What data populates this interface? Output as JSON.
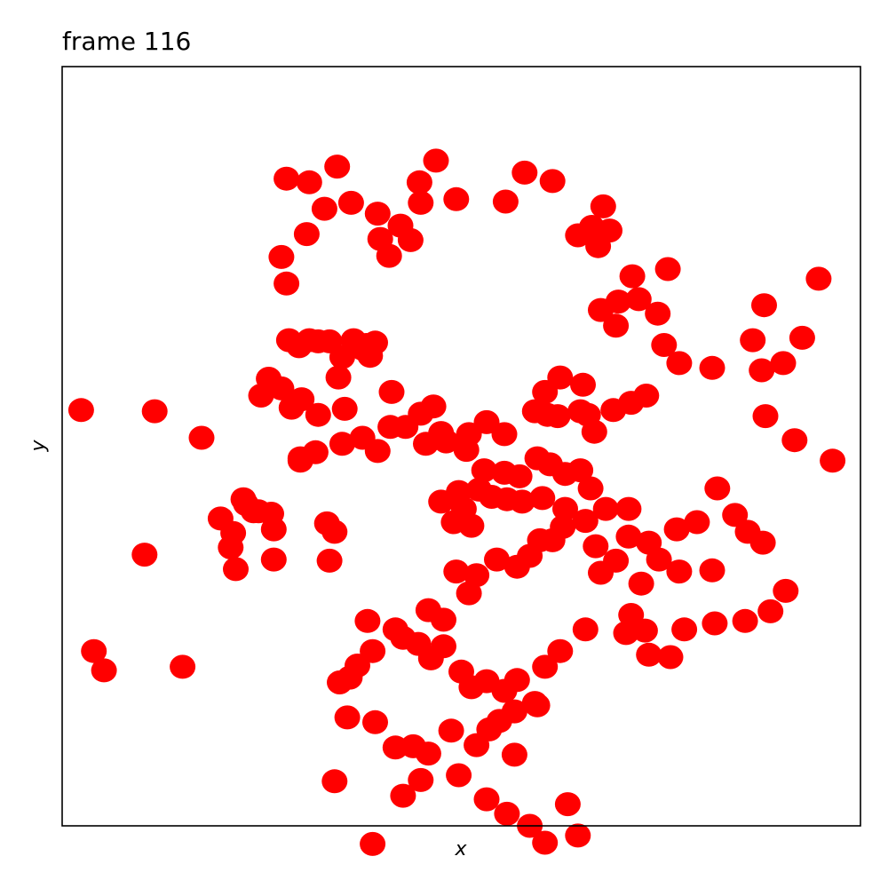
{
  "chart_data": {
    "type": "scatter",
    "title": "frame 116",
    "xlabel": "x",
    "ylabel": "y",
    "xlim": [
      -3.15,
      3.15
    ],
    "ylim": [
      -3.15,
      3.15
    ],
    "ticks": "hidden",
    "grid": false,
    "marker_color": "#ff0000",
    "points": [
      [
        -3.0,
        0.3
      ],
      [
        -2.5,
        -0.9
      ],
      [
        -2.05,
        0.07
      ],
      [
        -2.42,
        0.29
      ],
      [
        -2.2,
        -1.83
      ],
      [
        -2.9,
        -1.7
      ],
      [
        -2.82,
        -1.86
      ],
      [
        -1.9,
        -0.6
      ],
      [
        -1.82,
        -0.84
      ],
      [
        -1.8,
        -0.72
      ],
      [
        -1.78,
        -1.02
      ],
      [
        -1.72,
        -0.44
      ],
      [
        -1.7,
        -0.48
      ],
      [
        -1.64,
        -0.54
      ],
      [
        -1.6,
        -0.54
      ],
      [
        -1.5,
        -0.56
      ],
      [
        -1.48,
        -0.69
      ],
      [
        -1.48,
        -0.94
      ],
      [
        -1.58,
        0.42
      ],
      [
        -1.52,
        0.56
      ],
      [
        -1.42,
        0.48
      ],
      [
        -1.34,
        0.32
      ],
      [
        -1.26,
        0.39
      ],
      [
        -1.13,
        0.26
      ],
      [
        -1.27,
        -0.12
      ],
      [
        -1.27,
        -0.1
      ],
      [
        -1.15,
        -0.05
      ],
      [
        -1.06,
        -0.64
      ],
      [
        -1.04,
        -0.95
      ],
      [
        -1.0,
        -0.71
      ],
      [
        -1.38,
        1.35
      ],
      [
        -1.36,
        0.88
      ],
      [
        -1.28,
        0.83
      ],
      [
        -1.2,
        0.88
      ],
      [
        -1.13,
        0.87
      ],
      [
        -1.04,
        0.87
      ],
      [
        -0.97,
        0.57
      ],
      [
        -0.94,
        0.74
      ],
      [
        -0.92,
        0.31
      ],
      [
        -0.85,
        0.88
      ],
      [
        -0.78,
        0.81
      ],
      [
        -0.75,
        0.84
      ],
      [
        -0.72,
        0.75
      ],
      [
        -0.68,
        0.86
      ],
      [
        -0.55,
        0.45
      ],
      [
        -1.42,
        1.57
      ],
      [
        -1.22,
        1.76
      ],
      [
        -1.08,
        1.97
      ],
      [
        -1.2,
        2.19
      ],
      [
        -1.38,
        2.22
      ],
      [
        -0.98,
        2.32
      ],
      [
        -0.87,
        2.02
      ],
      [
        -0.66,
        1.93
      ],
      [
        -0.64,
        1.72
      ],
      [
        -0.57,
        1.58
      ],
      [
        -0.48,
        1.83
      ],
      [
        -0.4,
        1.71
      ],
      [
        -0.32,
        2.02
      ],
      [
        -0.33,
        2.19
      ],
      [
        -0.2,
        2.37
      ],
      [
        -0.04,
        2.05
      ],
      [
        0.35,
        2.03
      ],
      [
        0.5,
        2.27
      ],
      [
        0.72,
        2.2
      ],
      [
        0.92,
        1.75
      ],
      [
        1.17,
        1.79
      ],
      [
        1.03,
        1.82
      ],
      [
        1.12,
        1.99
      ],
      [
        1.08,
        1.66
      ],
      [
        1.4,
        1.22
      ],
      [
        1.24,
        1.2
      ],
      [
        1.22,
        1.0
      ],
      [
        1.1,
        1.13
      ],
      [
        1.35,
        1.41
      ],
      [
        1.63,
        1.47
      ],
      [
        1.55,
        1.1
      ],
      [
        1.6,
        0.84
      ],
      [
        1.72,
        0.69
      ],
      [
        1.98,
        0.65
      ],
      [
        2.54,
        0.69
      ],
      [
        2.3,
        0.88
      ],
      [
        2.82,
        1.39
      ],
      [
        2.69,
        0.9
      ],
      [
        2.39,
        1.17
      ],
      [
        2.37,
        0.63
      ],
      [
        2.4,
        0.25
      ],
      [
        2.63,
        0.05
      ],
      [
        2.93,
        -0.12
      ],
      [
        2.02,
        -0.35
      ],
      [
        2.16,
        -0.57
      ],
      [
        2.26,
        -0.71
      ],
      [
        2.38,
        -0.8
      ],
      [
        1.86,
        -0.63
      ],
      [
        1.7,
        -0.69
      ],
      [
        1.48,
        -0.8
      ],
      [
        1.32,
        -0.75
      ],
      [
        1.22,
        -0.95
      ],
      [
        1.06,
        -0.83
      ],
      [
        1.1,
        -1.05
      ],
      [
        1.42,
        -1.14
      ],
      [
        1.56,
        -0.94
      ],
      [
        1.72,
        -1.04
      ],
      [
        1.98,
        -1.03
      ],
      [
        2.24,
        -1.45
      ],
      [
        2.44,
        -1.37
      ],
      [
        2.0,
        -1.47
      ],
      [
        1.76,
        -1.52
      ],
      [
        2.56,
        -1.2
      ],
      [
        1.65,
        -1.75
      ],
      [
        1.3,
        -1.55
      ],
      [
        1.45,
        -1.53
      ],
      [
        1.48,
        -1.73
      ],
      [
        1.34,
        -1.4
      ],
      [
        0.98,
        -1.52
      ],
      [
        0.78,
        -1.7
      ],
      [
        0.66,
        -1.83
      ],
      [
        0.44,
        -1.94
      ],
      [
        0.58,
        -2.13
      ],
      [
        0.6,
        -2.15
      ],
      [
        0.42,
        -2.2
      ],
      [
        0.3,
        -2.28
      ],
      [
        0.08,
        -2.0
      ],
      [
        0.0,
        -1.87
      ],
      [
        -0.14,
        -1.66
      ],
      [
        -0.24,
        -1.76
      ],
      [
        -0.34,
        -1.64
      ],
      [
        -0.52,
        -1.52
      ],
      [
        -0.46,
        -1.59
      ],
      [
        -0.74,
        -1.45
      ],
      [
        -0.7,
        -1.7
      ],
      [
        -0.82,
        -1.82
      ],
      [
        -0.88,
        -1.92
      ],
      [
        -0.96,
        -1.96
      ],
      [
        -0.9,
        -2.25
      ],
      [
        -0.68,
        -2.29
      ],
      [
        -0.52,
        -2.5
      ],
      [
        -0.38,
        -2.49
      ],
      [
        -0.26,
        -2.55
      ],
      [
        -0.08,
        -2.36
      ],
      [
        0.12,
        -2.48
      ],
      [
        0.22,
        -2.35
      ],
      [
        0.42,
        -2.56
      ],
      [
        -0.02,
        -2.73
      ],
      [
        0.2,
        -2.93
      ],
      [
        0.36,
        -3.05
      ],
      [
        0.54,
        -3.15
      ],
      [
        0.66,
        -3.29
      ],
      [
        0.92,
        -3.23
      ],
      [
        0.84,
        -2.97
      ],
      [
        -1.0,
        -2.78
      ],
      [
        -0.7,
        -3.3
      ],
      [
        -0.46,
        -2.9
      ],
      [
        -0.32,
        -2.77
      ],
      [
        0.2,
        -1.95
      ],
      [
        0.34,
        -2.03
      ],
      [
        -0.26,
        -1.36
      ],
      [
        -0.14,
        -1.44
      ],
      [
        0.06,
        -1.22
      ],
      [
        -0.04,
        -1.04
      ],
      [
        0.12,
        -1.07
      ],
      [
        0.28,
        -0.94
      ],
      [
        0.44,
        -1.0
      ],
      [
        0.54,
        -0.91
      ],
      [
        0.62,
        -0.78
      ],
      [
        0.72,
        -0.78
      ],
      [
        0.8,
        -0.67
      ],
      [
        -0.06,
        -0.63
      ],
      [
        0.08,
        -0.66
      ],
      [
        0.02,
        -0.52
      ],
      [
        -0.16,
        -0.46
      ],
      [
        -0.02,
        -0.38
      ],
      [
        0.14,
        -0.36
      ],
      [
        0.24,
        -0.42
      ],
      [
        0.36,
        -0.44
      ],
      [
        0.48,
        -0.46
      ],
      [
        0.64,
        -0.43
      ],
      [
        0.82,
        -0.52
      ],
      [
        0.98,
        -0.62
      ],
      [
        1.14,
        -0.52
      ],
      [
        1.32,
        -0.52
      ],
      [
        0.82,
        -0.23
      ],
      [
        0.94,
        -0.2
      ],
      [
        1.02,
        -0.35
      ],
      [
        0.7,
        -0.15
      ],
      [
        0.6,
        -0.1
      ],
      [
        0.46,
        -0.25
      ],
      [
        0.34,
        -0.22
      ],
      [
        0.18,
        -0.2
      ],
      [
        0.04,
        -0.03
      ],
      [
        -0.12,
        0.04
      ],
      [
        -0.28,
        0.02
      ],
      [
        -0.44,
        0.16
      ],
      [
        -0.56,
        0.16
      ],
      [
        -0.66,
        -0.04
      ],
      [
        -0.78,
        0.07
      ],
      [
        -0.94,
        0.02
      ],
      [
        -0.32,
        0.27
      ],
      [
        -0.16,
        0.11
      ],
      [
        0.06,
        0.1
      ],
      [
        0.2,
        0.2
      ],
      [
        0.34,
        0.1
      ],
      [
        0.58,
        0.29
      ],
      [
        0.76,
        0.25
      ],
      [
        0.94,
        0.29
      ],
      [
        1.05,
        0.12
      ],
      [
        1.2,
        0.3
      ],
      [
        1.34,
        0.36
      ],
      [
        1.46,
        0.42
      ],
      [
        0.66,
        0.45
      ],
      [
        0.78,
        0.57
      ],
      [
        0.96,
        0.51
      ],
      [
        0.68,
        0.26
      ],
      [
        1.0,
        0.26
      ],
      [
        -0.22,
        0.33
      ]
    ]
  }
}
